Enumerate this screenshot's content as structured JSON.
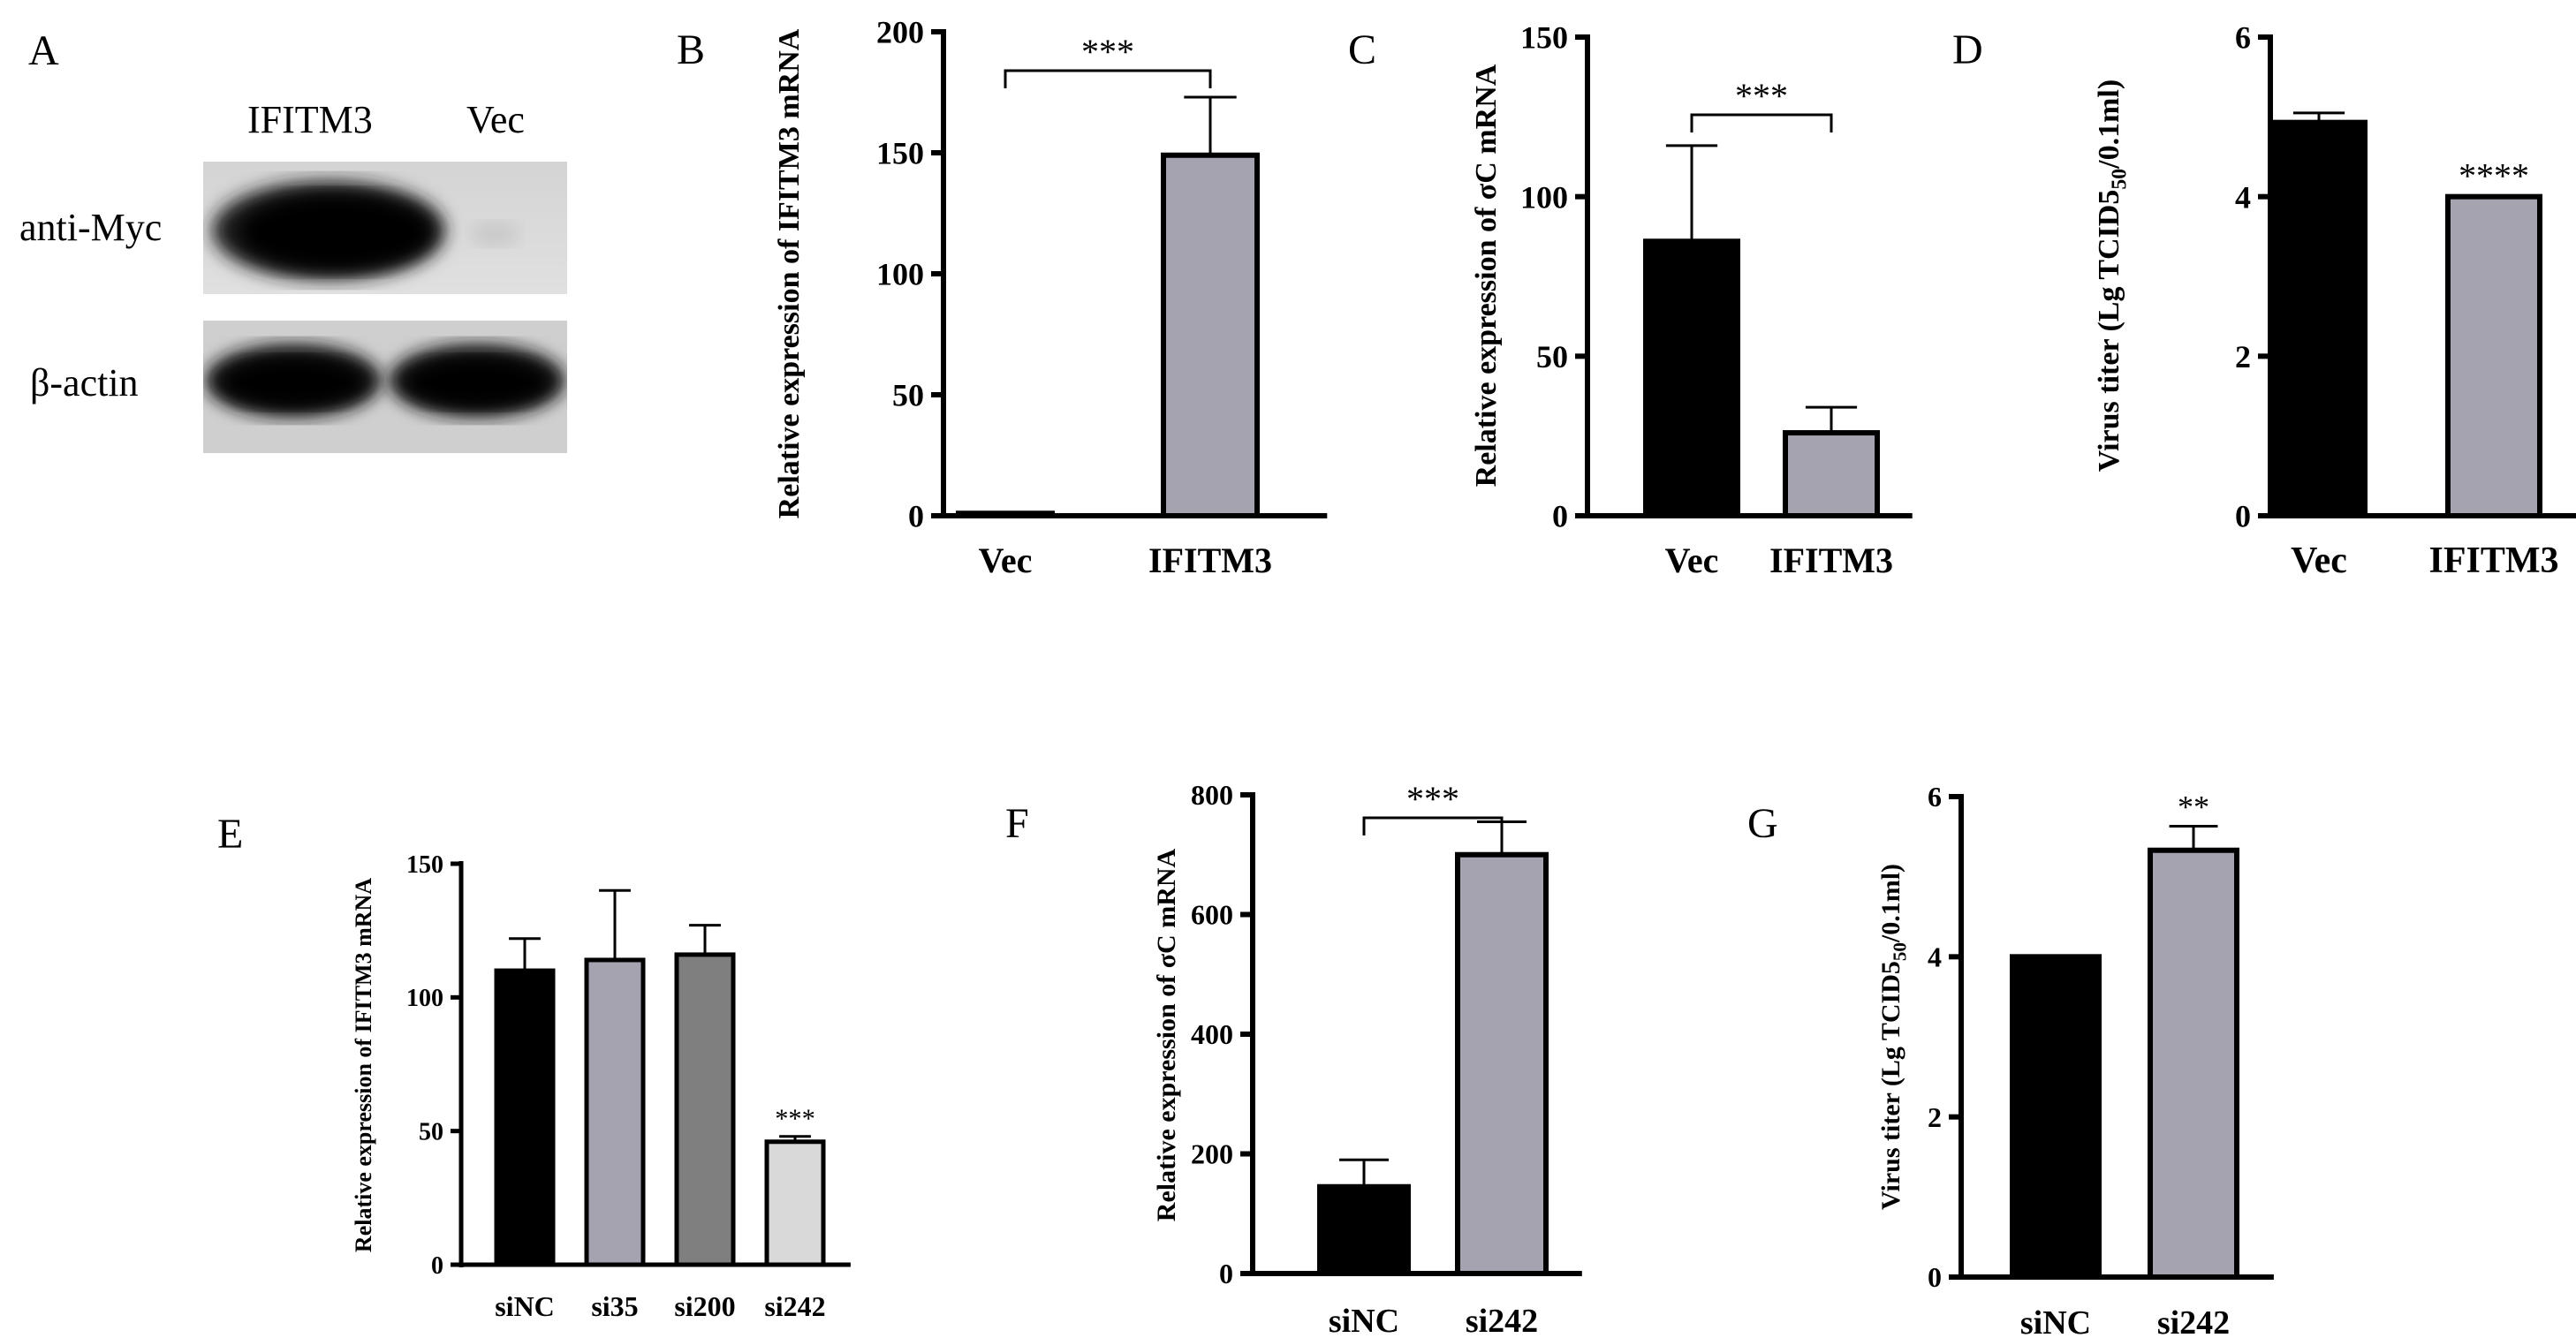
{
  "blot": {
    "panel": "A",
    "lanes": [
      "IFITM3",
      "Vec"
    ],
    "rows": [
      "anti-Myc",
      "β-actin"
    ]
  },
  "colors": {
    "black": "#000000",
    "gray": "#a4a3af",
    "dark_gray": "#7f7f7f",
    "light_gray": "#d9d9d9"
  },
  "chart_data": [
    {
      "panel": "B",
      "type": "bar",
      "categories": [
        "Vec",
        "IFITM3"
      ],
      "values": [
        1,
        149
      ],
      "errors": [
        0,
        24
      ],
      "colors": [
        "#000000",
        "#a4a3af"
      ],
      "ylabel": "Relative expression of IFITM3 mRNA",
      "ylim": [
        0,
        200
      ],
      "yticks": [
        0,
        50,
        100,
        150,
        200
      ],
      "annotations": [
        {
          "text": "***",
          "type": "bracket",
          "from": 0,
          "to": 1
        }
      ]
    },
    {
      "panel": "C",
      "type": "bar",
      "categories": [
        "Vec",
        "IFITM3"
      ],
      "values": [
        86,
        26
      ],
      "errors": [
        30,
        8
      ],
      "colors": [
        "#000000",
        "#a4a3af"
      ],
      "ylabel": "Relative expression of σC mRNA",
      "ylim": [
        0,
        150
      ],
      "yticks": [
        0,
        50,
        100,
        150
      ],
      "annotations": [
        {
          "text": "***",
          "type": "bracket",
          "from": 0,
          "to": 1
        }
      ]
    },
    {
      "panel": "D",
      "type": "bar",
      "categories": [
        "Vec",
        "IFITM3"
      ],
      "values": [
        4.93,
        4.0
      ],
      "errors": [
        0.12,
        0
      ],
      "colors": [
        "#000000",
        "#a4a3af"
      ],
      "ylabel": "Virus titer (Lg TCID50/0.1ml)",
      "ylim": [
        0,
        6
      ],
      "yticks": [
        0,
        2,
        4,
        6
      ],
      "annotations": [
        {
          "text": "****",
          "type": "star",
          "bar": 1
        }
      ]
    },
    {
      "panel": "E",
      "type": "bar",
      "categories": [
        "siNC",
        "si35",
        "si200",
        "si242"
      ],
      "values": [
        110,
        114,
        116,
        46
      ],
      "errors": [
        12,
        26,
        11,
        2
      ],
      "colors": [
        "#000000",
        "#a4a3af",
        "#7f7f7f",
        "#d9d9d9"
      ],
      "ylabel": "Relative expression of IFITM3 mRNA",
      "ylim": [
        0,
        150
      ],
      "yticks": [
        0,
        50,
        100,
        150
      ],
      "annotations": [
        {
          "text": "***",
          "type": "star",
          "bar": 3
        }
      ]
    },
    {
      "panel": "F",
      "type": "bar",
      "categories": [
        "siNC",
        "si242"
      ],
      "values": [
        145,
        700
      ],
      "errors": [
        45,
        55
      ],
      "colors": [
        "#000000",
        "#a4a3af"
      ],
      "ylabel": "Relative expression of σC mRNA",
      "ylim": [
        0,
        800
      ],
      "yticks": [
        0,
        200,
        400,
        600,
        800
      ],
      "annotations": [
        {
          "text": "***",
          "type": "bracket",
          "from": 0,
          "to": 1
        }
      ]
    },
    {
      "panel": "G",
      "type": "bar",
      "categories": [
        "siNC",
        "si242"
      ],
      "values": [
        4.0,
        5.33
      ],
      "errors": [
        0,
        0.3
      ],
      "colors": [
        "#000000",
        "#a4a3af"
      ],
      "ylabel": "Virus titer (Lg TCID50/0.1ml)",
      "ylim": [
        0,
        6
      ],
      "yticks": [
        0,
        2,
        4,
        6
      ],
      "annotations": [
        {
          "text": "**",
          "type": "star",
          "bar": 1
        }
      ]
    }
  ]
}
